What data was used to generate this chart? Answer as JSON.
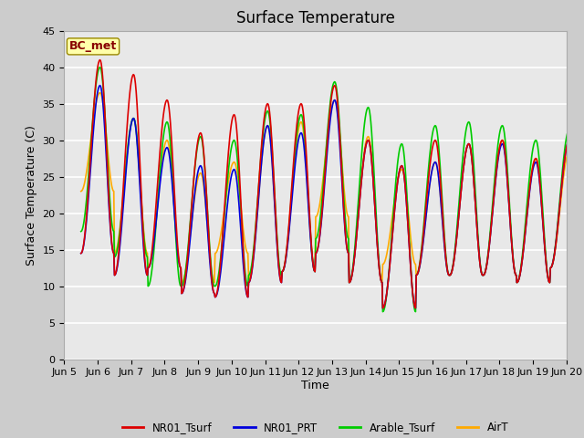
{
  "title": "Surface Temperature",
  "ylabel": "Surface Temperature (C)",
  "xlabel": "Time",
  "annotation": "BC_met",
  "ylim": [
    0,
    45
  ],
  "lines": {
    "NR01_Tsurf": {
      "color": "#dd0000",
      "lw": 1.2
    },
    "NR01_PRT": {
      "color": "#0000dd",
      "lw": 1.2
    },
    "Arable_Tsurf": {
      "color": "#00cc00",
      "lw": 1.2
    },
    "AirT": {
      "color": "#ffaa00",
      "lw": 1.2
    }
  },
  "xtick_labels": [
    "Jun 5",
    "Jun 6",
    "Jun 7",
    "Jun 8",
    "Jun 9",
    "Jun 10",
    "Jun 11",
    "Jun 12",
    "Jun 13",
    "Jun 14",
    "Jun 15",
    "Jun 16",
    "Jun 17",
    "Jun 18",
    "Jun 19",
    "Jun 20"
  ],
  "annotation_bbox": {
    "facecolor": "#ffffaa",
    "edgecolor": "#998800",
    "boxstyle": "round,pad=0.2"
  },
  "fig_facecolor": "#cccccc",
  "ax_facecolor": "#e8e8e8",
  "grid_color": "#ffffff"
}
